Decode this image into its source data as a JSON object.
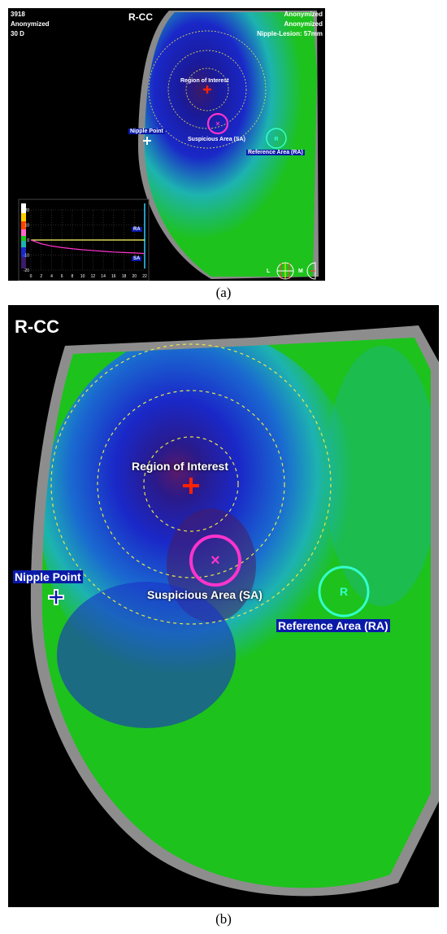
{
  "panel_a": {
    "header_left": [
      "3918",
      "Anonymized",
      "30 D"
    ],
    "view_title": "R-CC",
    "header_right": [
      "Anonymized",
      "Anonymized",
      "Nipple-Lesion: 57mm"
    ],
    "labels": {
      "roi": "Region of Interest",
      "nipple": "Nipple Point",
      "sa": "Suspicious Area (SA)",
      "ra": "Reference Area (RA)",
      "ra_marker": "R"
    },
    "graph": {
      "y_ticks": [
        "20",
        "10",
        "0",
        "-10",
        "-20"
      ],
      "x_ticks": [
        "0",
        "2",
        "4",
        "6",
        "8",
        "10",
        "12",
        "14",
        "16",
        "18",
        "20",
        "22"
      ],
      "series": [
        {
          "name": "RA",
          "color": "#ffff66",
          "x": [
            0,
            22
          ],
          "y": [
            0,
            0
          ]
        },
        {
          "name": "SA",
          "color": "#ff33cc",
          "x": [
            0,
            2,
            4,
            6,
            8,
            10,
            12,
            14,
            16,
            18,
            20,
            22
          ],
          "y": [
            0,
            -2.5,
            -4,
            -5,
            -5.8,
            -6.5,
            -7,
            -7.5,
            -8,
            -8.3,
            -8.6,
            -9
          ]
        }
      ],
      "ylim": [
        -20,
        20
      ],
      "xlim": [
        0,
        22
      ]
    },
    "orientation": {
      "left": "L",
      "right": "M"
    }
  },
  "panel_b": {
    "view_title": "R-CC",
    "labels": {
      "roi": "Region of Interest",
      "nipple": "Nipple Point",
      "sa": "Suspicious Area (SA)",
      "ra": "Reference Area (RA)",
      "ra_marker": "R"
    }
  },
  "captions": {
    "a": "(a)",
    "b": "(b)"
  },
  "colors": {
    "background": "#000000",
    "tissue_green": "#1dc21d",
    "tissue_cyan": "#1db3b0",
    "deep_blue": "#1a28c8",
    "dark_core": "#3a1a6a",
    "roi_circles": "#e8e84a",
    "sa_circle": "#ff33cc",
    "ra_circle": "#33ffcc",
    "roi_cross": "#ff2200",
    "label_bg": "#0a1aa8"
  }
}
